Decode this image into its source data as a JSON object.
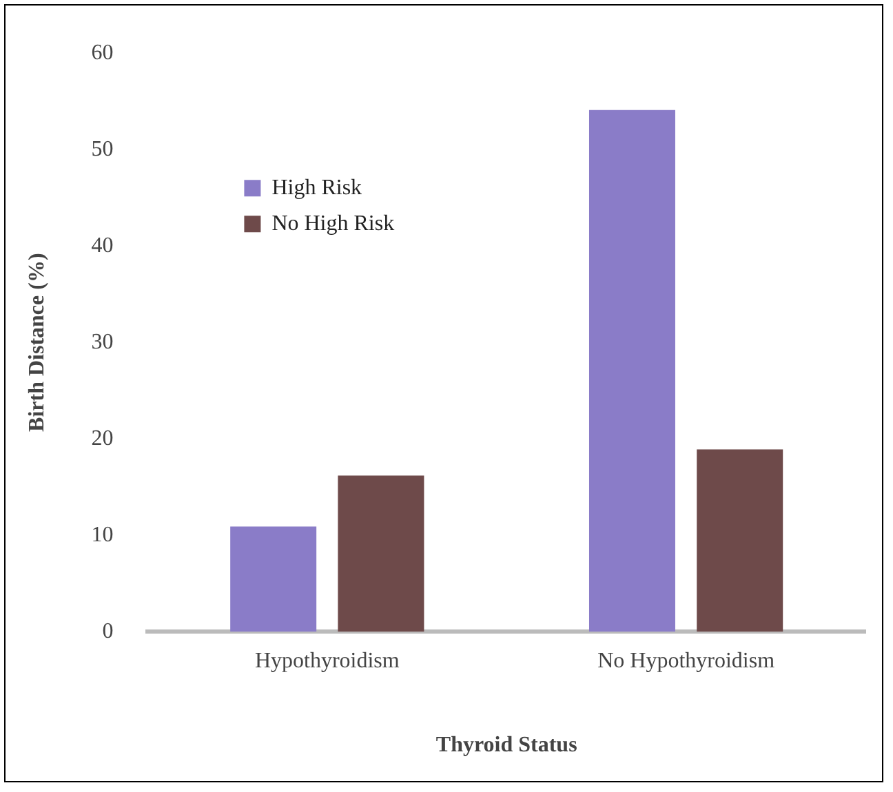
{
  "chart_data": {
    "type": "bar",
    "xlabel": "Thyroid Status",
    "ylabel": "Birth Distance (%)",
    "categories": [
      "Hypothyroidism",
      "No Hypothyroidism"
    ],
    "series": [
      {
        "name": "High Risk",
        "color": "#8a7cc8",
        "values": [
          10.9,
          54.1
        ]
      },
      {
        "name": "No High Risk",
        "color": "#6e4a4a",
        "values": [
          16.2,
          18.9
        ]
      }
    ],
    "ylim": [
      0,
      60
    ],
    "yticks": [
      0,
      10,
      20,
      30,
      40,
      50,
      60
    ],
    "grid": false,
    "legend": "top left"
  }
}
